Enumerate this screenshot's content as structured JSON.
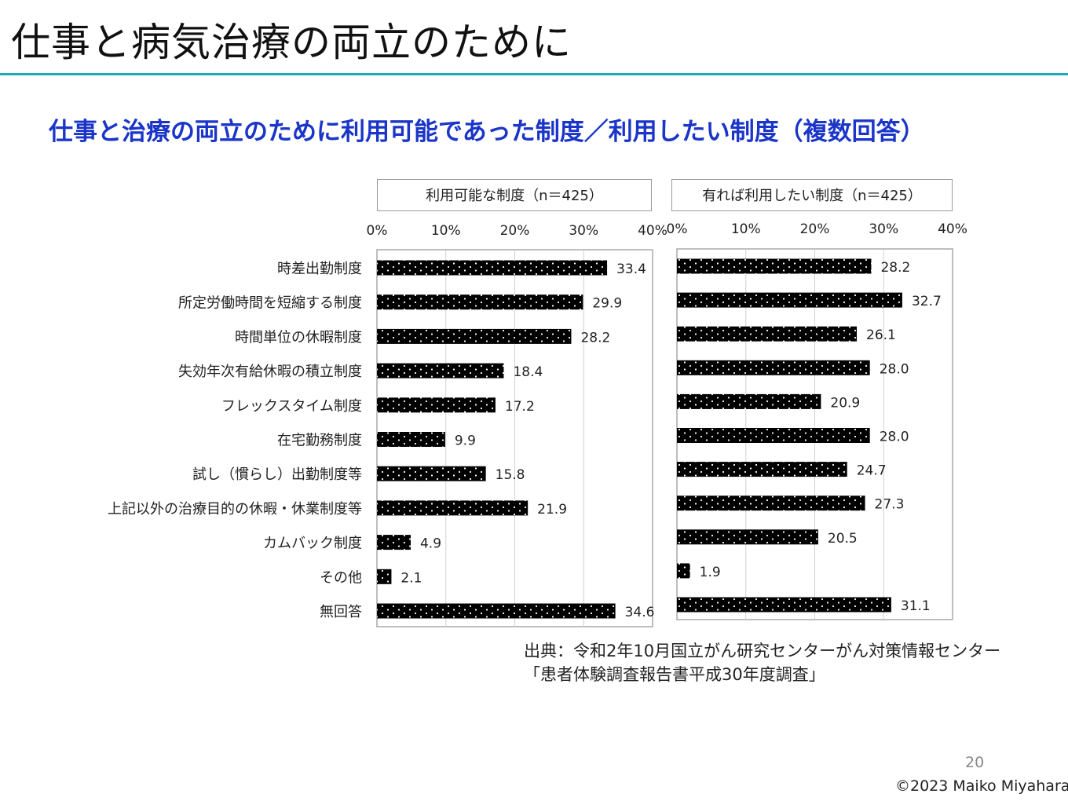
{
  "slide": {
    "title": "仕事と病気治療の両立のために",
    "subtitle": "仕事と治療の両立のために利用可能であった制度／利用したい制度（複数回答）",
    "source_line1": "出典：令和2年10月国立がん研究センターがん対策情報センター",
    "source_line2": "「患者体験調査報告書平成30年度調査」",
    "page_number": "20",
    "copyright": "©2023 Maiko Miyahara"
  },
  "colors": {
    "accent_rule": "#1fa9b5",
    "subtitle": "#1a35c8",
    "bar": "#000000",
    "bar_dots": "#ffffff"
  },
  "chart_data": [
    {
      "type": "bar",
      "orientation": "horizontal",
      "title": "利用可能な制度（n＝425）",
      "categories": [
        "時差出勤制度",
        "所定労働時間を短縮する制度",
        "時間単位の休暇制度",
        "失効年次有給休暇の積立制度",
        "フレックスタイム制度",
        "在宅勤務制度",
        "試し（慣らし）出勤制度等",
        "上記以外の治療目的の休暇・休業制度等",
        "カムバック制度",
        "その他",
        "無回答"
      ],
      "values": [
        33.4,
        29.9,
        28.2,
        18.4,
        17.2,
        9.9,
        15.8,
        21.9,
        4.9,
        2.1,
        34.6
      ],
      "value_labels": [
        "33.4",
        "29.9",
        "28.2",
        "18.4",
        "17.2",
        "9.9",
        "15.8",
        "21.9",
        "4.9",
        "2.1",
        "34.6"
      ],
      "xlim": [
        0,
        40
      ],
      "x_ticks": [
        "0%",
        "10%",
        "20%",
        "30%",
        "40%"
      ],
      "grid": true,
      "fill": "black with white dots"
    },
    {
      "type": "bar",
      "orientation": "horizontal",
      "title": "有れば利用したい制度（n＝425）",
      "categories": [
        "時差出勤制度",
        "所定労働時間を短縮する制度",
        "時間単位の休暇制度",
        "失効年次有給休暇の積立制度",
        "フレックスタイム制度",
        "在宅勤務制度",
        "試し（慣らし）出勤制度等",
        "上記以外の治療目的の休暇・休業制度等",
        "カムバック制度",
        "その他",
        "無回答"
      ],
      "values": [
        28.2,
        32.7,
        26.1,
        28.0,
        20.9,
        28.0,
        24.7,
        27.3,
        20.5,
        1.9,
        31.1
      ],
      "value_labels": [
        "28.2",
        "32.7",
        "26.1",
        "28.0",
        "20.9",
        "28.0",
        "24.7",
        "27.3",
        "20.5",
        "1.9",
        "31.1"
      ],
      "xlim": [
        0,
        40
      ],
      "x_ticks": [
        "0%",
        "10%",
        "20%",
        "30%",
        "40%"
      ],
      "grid": true,
      "fill": "black with white dots"
    }
  ]
}
